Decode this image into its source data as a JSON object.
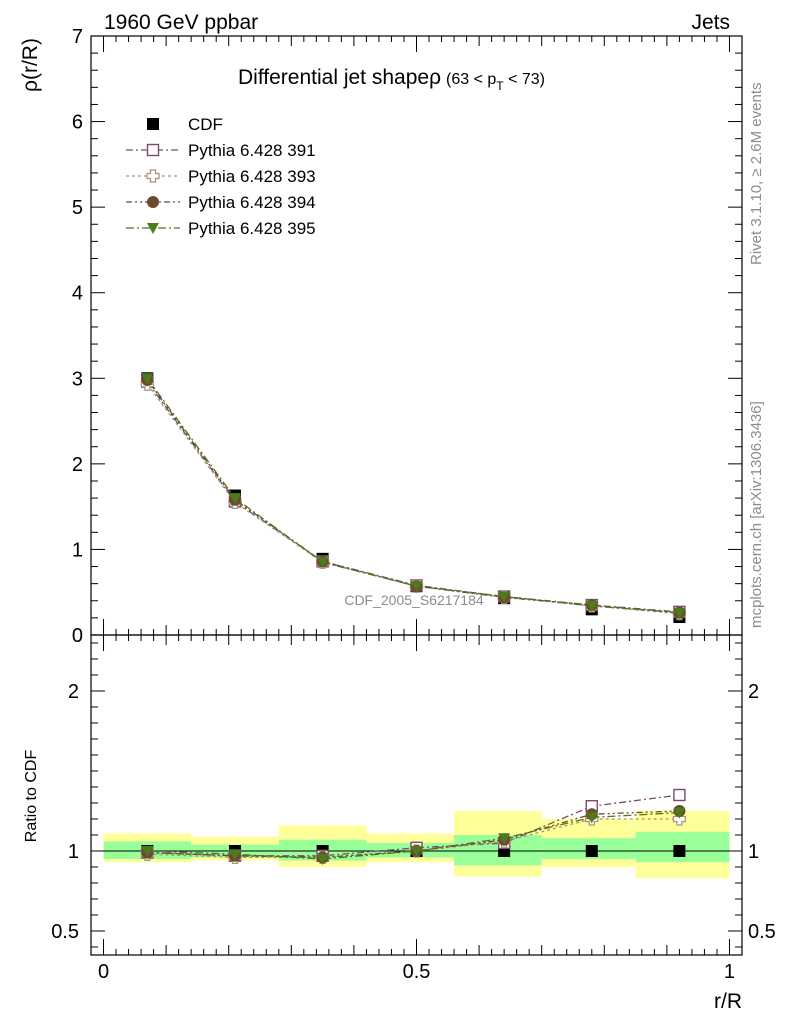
{
  "header": {
    "energy": "1960 GeV ppbar",
    "process": "Jets",
    "title_main": "Differential jet shape",
    "title_rho": "ρ",
    "title_cut_a": "(63 < p",
    "title_cut_sub": "T",
    "title_cut_b": " < 73)",
    "analysis_id": "CDF_2005_S6217184",
    "side_rivet": "Rivet 3.1.10, ≥ 2.6M events",
    "side_mcplots": "mcplots.cern.ch [arXiv:1306.3436]"
  },
  "chart_data": [
    {
      "type": "line",
      "name": "main",
      "ylabel": "ρ(r/R)",
      "xlim": [
        -0.02,
        1.02
      ],
      "ylim": [
        0,
        7
      ],
      "yticks": [
        0,
        1,
        2,
        3,
        4,
        5,
        6,
        7
      ],
      "x": [
        0.07,
        0.21,
        0.35,
        0.5,
        0.64,
        0.78,
        0.92
      ],
      "legend_position": "top-left",
      "series": [
        {
          "name": "CDF",
          "color": "#000000",
          "marker": "square-filled",
          "values": [
            3.0,
            1.63,
            0.89,
            0.57,
            0.43,
            0.3,
            0.21
          ]
        },
        {
          "name": "Pythia 6.428 391",
          "color": "#7b4a6e",
          "marker": "square-open",
          "values": [
            2.96,
            1.56,
            0.86,
            0.58,
            0.45,
            0.35,
            0.27
          ]
        },
        {
          "name": "Pythia 6.428 393",
          "color": "#a89876",
          "marker": "cross-open",
          "values": [
            2.93,
            1.55,
            0.85,
            0.57,
            0.44,
            0.34,
            0.25
          ]
        },
        {
          "name": "Pythia 6.428 394",
          "color": "#6b4a2e",
          "marker": "circle-filled",
          "values": [
            2.98,
            1.58,
            0.86,
            0.57,
            0.44,
            0.35,
            0.26
          ]
        },
        {
          "name": "Pythia 6.428 395",
          "color": "#4e7a1e",
          "marker": "triangle-down-filled",
          "values": [
            3.0,
            1.6,
            0.85,
            0.57,
            0.45,
            0.34,
            0.26
          ]
        }
      ]
    },
    {
      "type": "line",
      "name": "ratio",
      "xlabel": "r/R",
      "ylabel": "Ratio to CDF",
      "xlim": [
        -0.02,
        1.02
      ],
      "ylim": [
        0.35,
        2.35
      ],
      "xticks": [
        0,
        0.5,
        1
      ],
      "yticks": [
        0.5,
        1,
        2
      ],
      "x": [
        0.07,
        0.21,
        0.35,
        0.5,
        0.64,
        0.78,
        0.92
      ],
      "bins": [
        [
          0,
          0.14
        ],
        [
          0.14,
          0.28
        ],
        [
          0.28,
          0.42
        ],
        [
          0.42,
          0.56
        ],
        [
          0.56,
          0.7
        ],
        [
          0.7,
          0.85
        ],
        [
          0.85,
          1.0
        ]
      ],
      "band_stat": [
        [
          0.95,
          1.06
        ],
        [
          0.96,
          1.04
        ],
        [
          0.94,
          1.07
        ],
        [
          0.96,
          1.05
        ],
        [
          0.91,
          1.1
        ],
        [
          0.95,
          1.08
        ],
        [
          0.93,
          1.12
        ]
      ],
      "band_total": [
        [
          0.93,
          1.11
        ],
        [
          0.94,
          1.09
        ],
        [
          0.9,
          1.16
        ],
        [
          0.93,
          1.11
        ],
        [
          0.84,
          1.25
        ],
        [
          0.9,
          1.2
        ],
        [
          0.83,
          1.25
        ]
      ],
      "band_stat_color": "#99ff99",
      "band_total_color": "#ffff99",
      "series": [
        {
          "name": "Pythia 6.428 391",
          "values": [
            0.99,
            0.97,
            0.97,
            1.02,
            1.05,
            1.28,
            1.35
          ]
        },
        {
          "name": "Pythia 6.428 393",
          "values": [
            0.98,
            0.96,
            0.96,
            1.0,
            1.06,
            1.2,
            1.2
          ]
        },
        {
          "name": "Pythia 6.428 394",
          "values": [
            0.99,
            0.97,
            0.96,
            1.0,
            1.07,
            1.23,
            1.25
          ]
        },
        {
          "name": "Pythia 6.428 395",
          "values": [
            1.0,
            0.98,
            0.95,
            1.0,
            1.08,
            1.21,
            1.24
          ]
        }
      ]
    }
  ]
}
